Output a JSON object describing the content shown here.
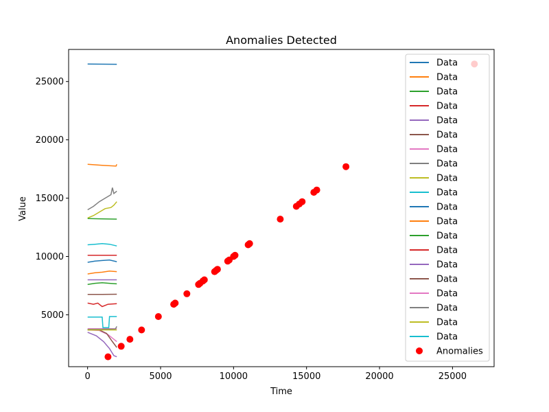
{
  "chart_data": {
    "type": "line",
    "title": "Anomalies Detected",
    "xlabel": "Time",
    "ylabel": "Value",
    "xlim": [
      -1300,
      27850
    ],
    "ylim": [
      550,
      27750
    ],
    "x_ticks": [
      0,
      5000,
      10000,
      15000,
      20000,
      25000
    ],
    "y_ticks": [
      5000,
      10000,
      15000,
      20000,
      25000
    ],
    "x_tick_labels": [
      "0",
      "5000",
      "10000",
      "15000",
      "20000",
      "25000"
    ],
    "y_tick_labels": [
      "5000",
      "10000",
      "15000",
      "20000",
      "25000"
    ],
    "grid": false,
    "legend_position": "top-right",
    "series": [
      {
        "name": "Data",
        "color": "#1f77b4",
        "values": [
          [
            0,
            26500
          ],
          [
            2000,
            26480
          ]
        ]
      },
      {
        "name": "Data",
        "color": "#ff7f0e",
        "values": [
          [
            0,
            17900
          ],
          [
            1000,
            17820
          ],
          [
            1950,
            17750
          ],
          [
            2000,
            17900
          ]
        ]
      },
      {
        "name": "Data",
        "color": "#2ca02c",
        "values": [
          [
            0,
            13250
          ],
          [
            1000,
            13220
          ],
          [
            2000,
            13200
          ]
        ]
      },
      {
        "name": "Data",
        "color": "#d62728",
        "values": [
          [
            0,
            10100
          ],
          [
            1000,
            10100
          ],
          [
            2000,
            10100
          ]
        ]
      },
      {
        "name": "Data",
        "color": "#9467bd",
        "values": [
          [
            0,
            3500
          ],
          [
            600,
            3200
          ],
          [
            1100,
            2700
          ],
          [
            1500,
            2100
          ],
          [
            1800,
            1500
          ],
          [
            2000,
            1400
          ]
        ]
      },
      {
        "name": "Data",
        "color": "#8c564b",
        "values": [
          [
            0,
            6750
          ],
          [
            1000,
            6750
          ],
          [
            2000,
            6760
          ]
        ]
      },
      {
        "name": "Data",
        "color": "#e377c2",
        "values": [
          [
            0,
            3700
          ],
          [
            800,
            3650
          ],
          [
            1400,
            3300
          ],
          [
            1800,
            2900
          ],
          [
            2000,
            2700
          ]
        ]
      },
      {
        "name": "Data",
        "color": "#7f7f7f",
        "values": [
          [
            0,
            14000
          ],
          [
            400,
            14300
          ],
          [
            800,
            14700
          ],
          [
            1200,
            15000
          ],
          [
            1600,
            15300
          ],
          [
            1700,
            15900
          ],
          [
            1800,
            15400
          ],
          [
            2000,
            15600
          ]
        ]
      },
      {
        "name": "Data",
        "color": "#bcbd22",
        "values": [
          [
            0,
            13300
          ],
          [
            400,
            13500
          ],
          [
            800,
            13800
          ],
          [
            1200,
            14100
          ],
          [
            1600,
            14200
          ],
          [
            1800,
            14400
          ],
          [
            2000,
            14700
          ]
        ]
      },
      {
        "name": "Data",
        "color": "#17becf",
        "values": [
          [
            0,
            11000
          ],
          [
            500,
            11050
          ],
          [
            1000,
            11100
          ],
          [
            1500,
            11050
          ],
          [
            2000,
            10900
          ]
        ]
      },
      {
        "name": "Data",
        "color": "#1f77b4",
        "values": [
          [
            0,
            9500
          ],
          [
            500,
            9600
          ],
          [
            1000,
            9650
          ],
          [
            1500,
            9700
          ],
          [
            2000,
            9550
          ]
        ]
      },
      {
        "name": "Data",
        "color": "#ff7f0e",
        "values": [
          [
            0,
            8500
          ],
          [
            500,
            8600
          ],
          [
            1000,
            8650
          ],
          [
            1500,
            8750
          ],
          [
            2000,
            8700
          ]
        ]
      },
      {
        "name": "Data",
        "color": "#2ca02c",
        "values": [
          [
            0,
            7600
          ],
          [
            500,
            7700
          ],
          [
            1000,
            7750
          ],
          [
            1500,
            7700
          ],
          [
            2000,
            7650
          ]
        ]
      },
      {
        "name": "Data",
        "color": "#d62728",
        "values": [
          [
            0,
            6000
          ],
          [
            400,
            5900
          ],
          [
            700,
            6000
          ],
          [
            1000,
            5700
          ],
          [
            1400,
            5900
          ],
          [
            2000,
            5950
          ]
        ]
      },
      {
        "name": "Data",
        "color": "#9467bd",
        "values": [
          [
            0,
            8000
          ],
          [
            1000,
            8000
          ],
          [
            2000,
            8000
          ]
        ]
      },
      {
        "name": "Data",
        "color": "#8c564b",
        "values": [
          [
            0,
            3700
          ],
          [
            800,
            3700
          ],
          [
            1300,
            3400
          ],
          [
            1700,
            2700
          ],
          [
            2000,
            2200
          ]
        ]
      },
      {
        "name": "Data",
        "color": "#e377c2",
        "values": [
          [
            0,
            3800
          ],
          [
            1000,
            3800
          ],
          [
            2000,
            3800
          ]
        ]
      },
      {
        "name": "Data",
        "color": "#7f7f7f",
        "values": [
          [
            0,
            3750
          ],
          [
            1000,
            3760
          ],
          [
            1900,
            3780
          ],
          [
            2000,
            4000
          ]
        ]
      },
      {
        "name": "Data",
        "color": "#bcbd22",
        "values": [
          [
            0,
            3700
          ],
          [
            1000,
            3700
          ],
          [
            2000,
            3700
          ]
        ]
      },
      {
        "name": "Data",
        "color": "#17becf",
        "values": [
          [
            0,
            4800
          ],
          [
            1000,
            4800
          ],
          [
            1050,
            3900
          ],
          [
            1450,
            3900
          ],
          [
            1500,
            4850
          ],
          [
            2000,
            4850
          ]
        ]
      }
    ],
    "anomalies": {
      "name": "Anomalies",
      "color": "#ff0000",
      "points": [
        [
          1400,
          1400
        ],
        [
          2300,
          2300
        ],
        [
          2900,
          2900
        ],
        [
          3700,
          3700
        ],
        [
          4850,
          4850
        ],
        [
          5900,
          5900
        ],
        [
          6000,
          6000
        ],
        [
          6800,
          6800
        ],
        [
          7600,
          7600
        ],
        [
          7700,
          7700
        ],
        [
          7900,
          7900
        ],
        [
          8000,
          8000
        ],
        [
          8700,
          8700
        ],
        [
          8800,
          8800
        ],
        [
          8900,
          8900
        ],
        [
          9600,
          9600
        ],
        [
          9700,
          9700
        ],
        [
          10000,
          10000
        ],
        [
          10100,
          10100
        ],
        [
          11000,
          11000
        ],
        [
          11100,
          11100
        ],
        [
          13200,
          13200
        ],
        [
          14300,
          14300
        ],
        [
          14500,
          14500
        ],
        [
          14700,
          14700
        ],
        [
          15500,
          15500
        ],
        [
          15700,
          15700
        ],
        [
          17700,
          17700
        ],
        [
          26500,
          26500
        ]
      ]
    }
  }
}
